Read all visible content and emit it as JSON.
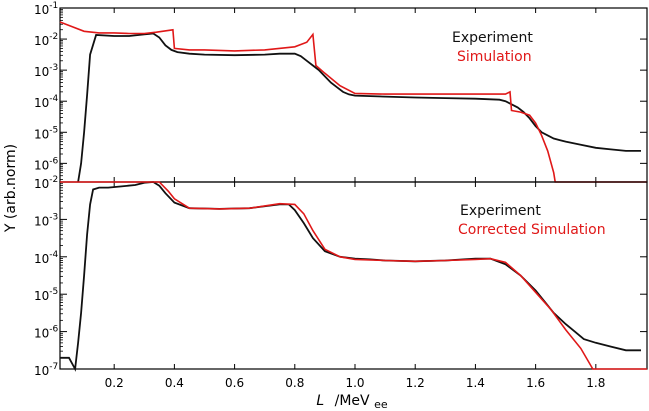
{
  "chart_data": {
    "type": "line",
    "xlabel_var": "L",
    "xlabel_unit_main": "/MeV",
    "xlabel_unit_sub": "ee",
    "ylabel": "Y (arb.norm)",
    "xlim": [
      0.02,
      1.97
    ],
    "x_ticks": [
      0.2,
      0.4,
      0.6,
      0.8,
      1.0,
      1.2,
      1.4,
      1.6,
      1.8
    ],
    "x_tick_labels": [
      "0.2",
      "0.4",
      "0.6",
      "0.8",
      "1.0",
      "1.2",
      "1.4",
      "1.6",
      "1.8"
    ],
    "colors": {
      "experiment": "#111111",
      "simulation": "#e01818"
    },
    "panels": [
      {
        "id": "top",
        "ylim_exp": [
          -6.6,
          -1
        ],
        "y_ticks": [
          {
            "base": "10",
            "exp": "-1"
          },
          {
            "base": "10",
            "exp": "-2"
          },
          {
            "base": "10",
            "exp": "-3"
          },
          {
            "base": "10",
            "exp": "-4"
          },
          {
            "base": "10",
            "exp": "-5"
          },
          {
            "base": "10",
            "exp": "-6"
          }
        ],
        "legend": [
          "Experiment",
          "Simulation"
        ],
        "series": [
          {
            "name": "Experiment",
            "x": [
              0.08,
              0.09,
              0.1,
              0.11,
              0.12,
              0.14,
              0.2,
              0.25,
              0.3,
              0.33,
              0.35,
              0.37,
              0.39,
              0.41,
              0.45,
              0.5,
              0.6,
              0.7,
              0.75,
              0.8,
              0.82,
              0.84,
              0.86,
              0.88,
              0.9,
              0.92,
              0.94,
              0.96,
              0.98,
              1.0,
              1.1,
              1.2,
              1.3,
              1.4,
              1.48,
              1.5,
              1.52,
              1.54,
              1.56,
              1.58,
              1.6,
              1.62,
              1.64,
              1.66,
              1.68,
              1.7,
              1.75,
              1.8,
              1.85,
              1.9,
              1.95
            ],
            "y_log10": [
              -6.6,
              -6.0,
              -5.0,
              -3.8,
              -2.5,
              -1.87,
              -1.9,
              -1.9,
              -1.85,
              -1.82,
              -1.95,
              -2.2,
              -2.35,
              -2.42,
              -2.47,
              -2.5,
              -2.52,
              -2.5,
              -2.47,
              -2.47,
              -2.55,
              -2.7,
              -2.85,
              -3.0,
              -3.2,
              -3.4,
              -3.55,
              -3.7,
              -3.78,
              -3.82,
              -3.85,
              -3.88,
              -3.9,
              -3.92,
              -3.95,
              -4.0,
              -4.1,
              -4.2,
              -4.35,
              -4.55,
              -4.8,
              -5.0,
              -5.1,
              -5.2,
              -5.25,
              -5.3,
              -5.4,
              -5.5,
              -5.55,
              -5.6,
              -5.6
            ]
          },
          {
            "name": "Simulation",
            "x": [
              0.02,
              0.06,
              0.1,
              0.15,
              0.2,
              0.25,
              0.3,
              0.34,
              0.395,
              0.4,
              0.45,
              0.5,
              0.6,
              0.7,
              0.8,
              0.84,
              0.86,
              0.87,
              0.9,
              0.95,
              1.0,
              1.1,
              1.2,
              1.3,
              1.4,
              1.5,
              1.515,
              1.52,
              1.55,
              1.58,
              1.6,
              1.62,
              1.64,
              1.66,
              1.665,
              1.97
            ],
            "y_log10": [
              -1.45,
              -1.6,
              -1.75,
              -1.8,
              -1.8,
              -1.82,
              -1.82,
              -1.78,
              -1.7,
              -2.3,
              -2.35,
              -2.35,
              -2.38,
              -2.35,
              -2.25,
              -2.1,
              -1.85,
              -2.85,
              -3.1,
              -3.5,
              -3.75,
              -3.77,
              -3.77,
              -3.77,
              -3.77,
              -3.77,
              -3.7,
              -4.3,
              -4.35,
              -4.45,
              -4.7,
              -5.1,
              -5.6,
              -6.3,
              -6.6,
              -6.6
            ]
          }
        ]
      },
      {
        "id": "bottom",
        "ylim_exp": [
          -7,
          -2
        ],
        "y_ticks": [
          {
            "base": "10",
            "exp": "-2"
          },
          {
            "base": "10",
            "exp": "-3"
          },
          {
            "base": "10",
            "exp": "-4"
          },
          {
            "base": "10",
            "exp": "-5"
          },
          {
            "base": "10",
            "exp": "-6"
          },
          {
            "base": "10",
            "exp": "-7"
          }
        ],
        "legend": [
          "Experiment",
          "Corrected Simulation"
        ],
        "series": [
          {
            "name": "Experiment",
            "x": [
              0.02,
              0.05,
              0.07,
              0.08,
              0.09,
              0.1,
              0.11,
              0.12,
              0.13,
              0.15,
              0.18,
              0.22,
              0.27,
              0.3,
              0.33,
              0.35,
              0.37,
              0.4,
              0.45,
              0.55,
              0.65,
              0.75,
              0.78,
              0.8,
              0.83,
              0.86,
              0.9,
              0.95,
              1.0,
              1.05,
              1.1,
              1.2,
              1.3,
              1.4,
              1.45,
              1.5,
              1.55,
              1.6,
              1.63,
              1.66,
              1.7,
              1.73,
              1.76,
              1.8,
              1.85,
              1.9,
              1.95
            ],
            "y_log10": [
              -6.7,
              -6.7,
              -7.0,
              -6.3,
              -5.5,
              -4.5,
              -3.4,
              -2.6,
              -2.2,
              -2.15,
              -2.15,
              -2.12,
              -2.08,
              -2.02,
              -2.0,
              -2.1,
              -2.3,
              -2.55,
              -2.7,
              -2.72,
              -2.7,
              -2.6,
              -2.6,
              -2.75,
              -3.1,
              -3.5,
              -3.85,
              -4.0,
              -4.05,
              -4.07,
              -4.1,
              -4.12,
              -4.1,
              -4.05,
              -4.05,
              -4.2,
              -4.5,
              -4.9,
              -5.2,
              -5.5,
              -5.8,
              -6.0,
              -6.2,
              -6.3,
              -6.4,
              -6.5,
              -6.5
            ]
          },
          {
            "name": "Corrected Simulation",
            "x": [
              0.02,
              0.1,
              0.15,
              0.2,
              0.25,
              0.3,
              0.33,
              0.35,
              0.38,
              0.4,
              0.45,
              0.55,
              0.65,
              0.75,
              0.8,
              0.83,
              0.86,
              0.9,
              0.95,
              1.0,
              1.1,
              1.2,
              1.3,
              1.4,
              1.45,
              1.5,
              1.55,
              1.6,
              1.65,
              1.7,
              1.75,
              1.79,
              1.97
            ],
            "y_log10": [
              -2.0,
              -2.0,
              -2.0,
              -2.0,
              -1.98,
              -1.98,
              -1.95,
              -2.0,
              -2.25,
              -2.45,
              -2.7,
              -2.72,
              -2.7,
              -2.58,
              -2.6,
              -2.85,
              -3.3,
              -3.8,
              -4.0,
              -4.07,
              -4.1,
              -4.12,
              -4.1,
              -4.07,
              -4.05,
              -4.15,
              -4.5,
              -4.95,
              -5.4,
              -5.95,
              -6.45,
              -7.0,
              -7.0
            ]
          }
        ]
      }
    ]
  }
}
